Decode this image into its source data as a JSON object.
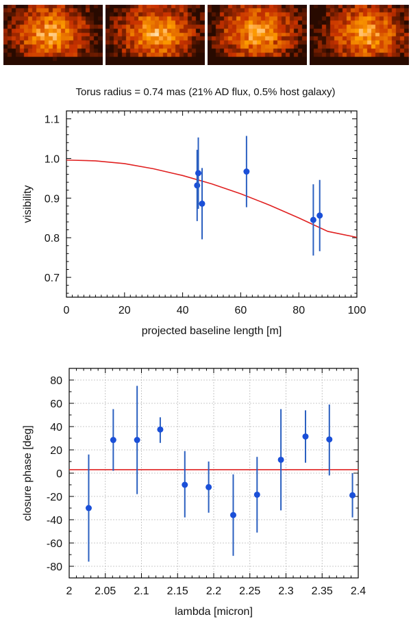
{
  "thumbnails": [
    {
      "name": "image-panel-1"
    },
    {
      "name": "image-panel-2"
    },
    {
      "name": "image-panel-3"
    },
    {
      "name": "image-panel-4"
    }
  ],
  "colors": {
    "model": "#e02020",
    "data": "#1a4fd8",
    "errorbar": "#2a5fc0",
    "grid": "#b8b8b8"
  },
  "title": "Torus radius = 0.74 mas  (21% AD flux, 0.5% host galaxy)",
  "chart_data": [
    {
      "type": "scatter",
      "title": "Torus radius = 0.74 mas  (21% AD flux, 0.5% host galaxy)",
      "xlabel": "projected baseline length [m]",
      "ylabel": "visibility",
      "xlim": [
        0,
        100
      ],
      "ylim": [
        0.65,
        1.12
      ],
      "xticks": [
        0,
        20,
        40,
        60,
        80,
        100
      ],
      "xtick_labels": [
        "0",
        "20",
        "40",
        "60",
        "80",
        "100"
      ],
      "yticks": [
        0.7,
        0.8,
        0.9,
        1.0,
        1.1
      ],
      "ytick_labels": [
        "0.7",
        "0.8",
        "0.9",
        "1.0",
        "1.1"
      ],
      "grid": false,
      "points": [
        {
          "x": 45.0,
          "y": 0.932,
          "err": 0.09
        },
        {
          "x": 45.4,
          "y": 0.963,
          "err": 0.09
        },
        {
          "x": 46.7,
          "y": 0.886,
          "err": 0.09
        },
        {
          "x": 62.0,
          "y": 0.967,
          "err": 0.09
        },
        {
          "x": 85.0,
          "y": 0.845,
          "err": 0.09
        },
        {
          "x": 87.2,
          "y": 0.856,
          "err": 0.09
        }
      ],
      "model": {
        "name": "model visibility curve",
        "x": [
          0,
          10,
          20,
          30,
          40,
          50,
          60,
          70,
          80,
          90,
          100
        ],
        "y": [
          0.996,
          0.994,
          0.987,
          0.974,
          0.957,
          0.936,
          0.911,
          0.882,
          0.85,
          0.816,
          0.801
        ]
      }
    },
    {
      "type": "scatter",
      "title": "",
      "xlabel": "lambda [micron]",
      "ylabel": "closure phase [deg]",
      "xlim": [
        2.0,
        2.4
      ],
      "ylim": [
        -90,
        90
      ],
      "xticks": [
        2.0,
        2.05,
        2.1,
        2.15,
        2.2,
        2.25,
        2.3,
        2.35,
        2.4
      ],
      "xtick_labels": [
        "2",
        "2.05",
        "2.1",
        "2.15",
        "2.2",
        "2.25",
        "2.3",
        "2.35",
        "2.4"
      ],
      "yticks": [
        -80,
        -60,
        -40,
        -20,
        0,
        20,
        40,
        60,
        80
      ],
      "ytick_labels": [
        "-80",
        "-60",
        "-40",
        "-20",
        "0",
        "20",
        "40",
        "60",
        "80"
      ],
      "grid": true,
      "points": [
        {
          "x": 2.027,
          "y": -30,
          "lo": -76,
          "hi": 16
        },
        {
          "x": 2.061,
          "y": 28.5,
          "lo": 2,
          "hi": 55
        },
        {
          "x": 2.094,
          "y": 28.5,
          "lo": -18,
          "hi": 75
        },
        {
          "x": 2.126,
          "y": 37.5,
          "lo": 26,
          "hi": 48
        },
        {
          "x": 2.16,
          "y": -10,
          "lo": -38,
          "hi": 19
        },
        {
          "x": 2.193,
          "y": -12,
          "lo": -34,
          "hi": 10
        },
        {
          "x": 2.227,
          "y": -36,
          "lo": -71,
          "hi": -1
        },
        {
          "x": 2.26,
          "y": -18.5,
          "lo": -51,
          "hi": 14
        },
        {
          "x": 2.293,
          "y": 11.5,
          "lo": -32,
          "hi": 55
        },
        {
          "x": 2.327,
          "y": 31.5,
          "lo": 9,
          "hi": 54
        },
        {
          "x": 2.36,
          "y": 29,
          "lo": -2,
          "hi": 59
        },
        {
          "x": 2.392,
          "y": -19,
          "lo": -38,
          "hi": 0
        }
      ],
      "model": {
        "name": "model closure phase",
        "x": [
          2.0,
          2.4
        ],
        "y": [
          3,
          3
        ]
      }
    }
  ]
}
